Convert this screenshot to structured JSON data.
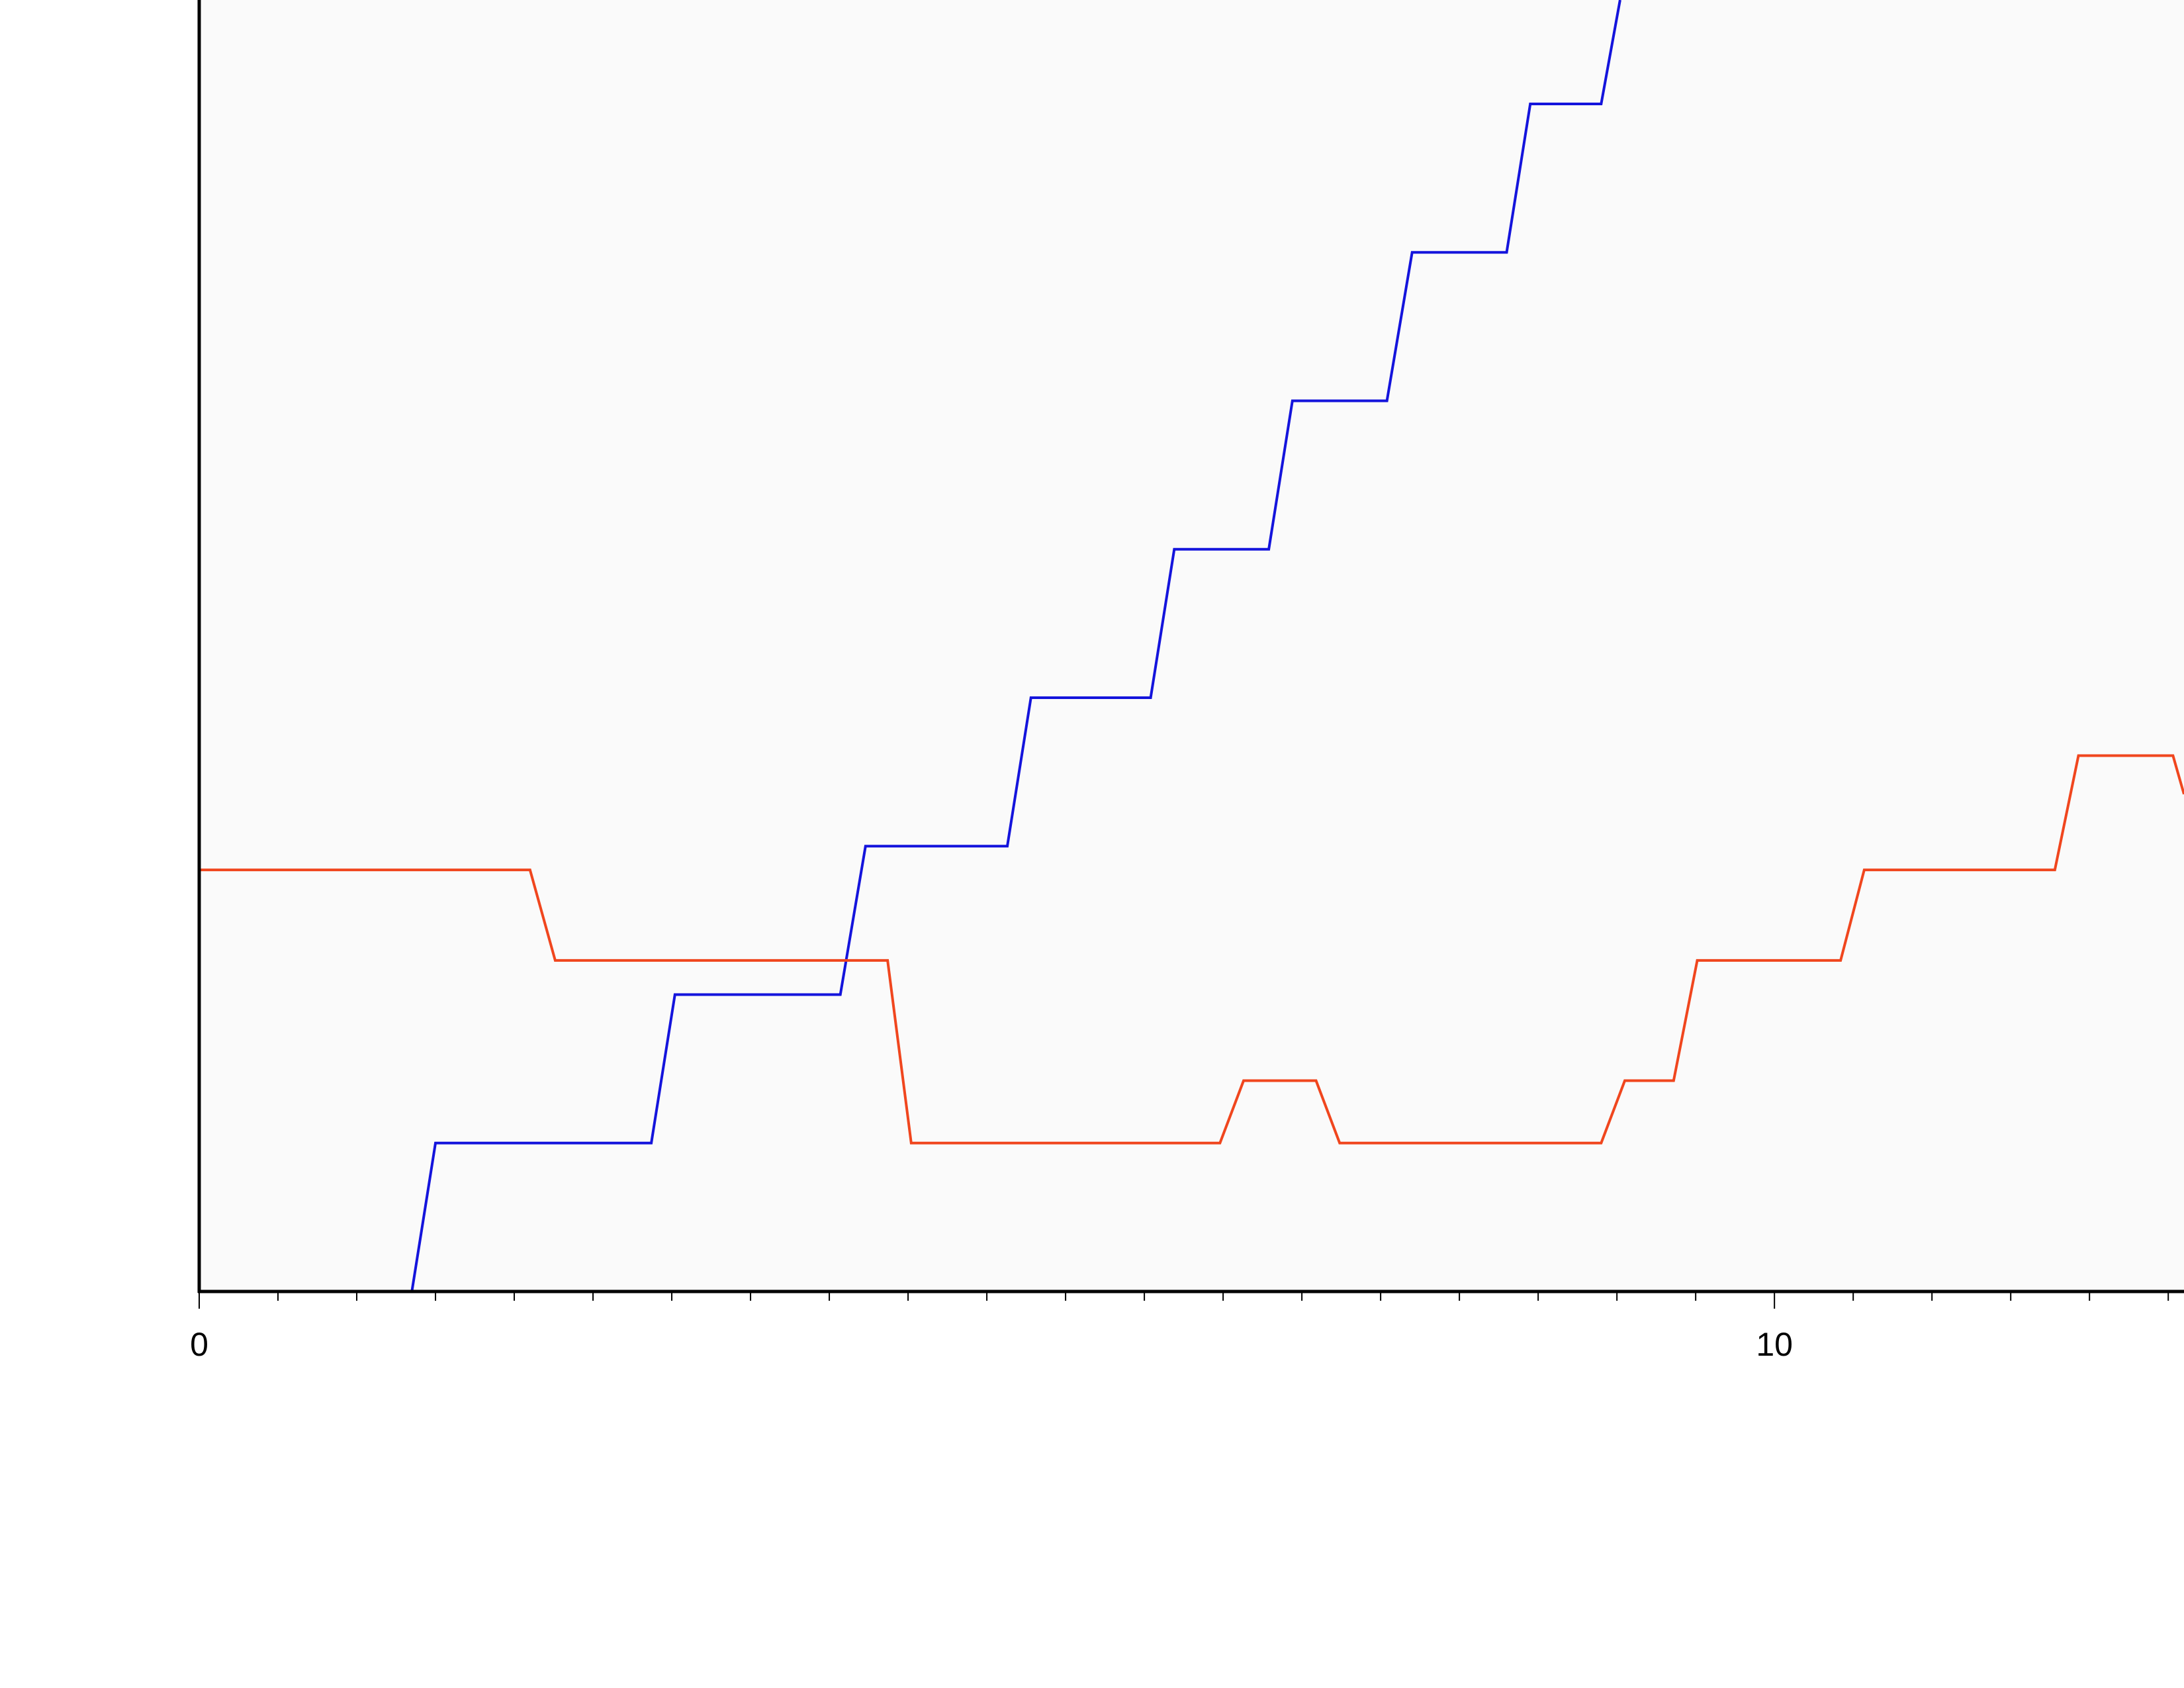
{
  "chart_data": {
    "type": "line",
    "xlim": [
      0,
      12.6
    ],
    "ylim": [
      0,
      8.7
    ],
    "xticks": [
      0,
      10
    ],
    "xminorticks": [
      0.5,
      1,
      1.5,
      2,
      2.5,
      3,
      3.5,
      4,
      4.5,
      5,
      5.5,
      6,
      6.5,
      7,
      7.5,
      8,
      8.5,
      9,
      9.5,
      10.5,
      11,
      11.5,
      12,
      12.5
    ],
    "series": [
      {
        "color": "#1414dc",
        "x": [
          0,
          1.35,
          1.5,
          2.87,
          3.02,
          4.07,
          4.23,
          5.13,
          5.28,
          6.04,
          6.19,
          6.79,
          6.94,
          7.54,
          7.7,
          8.3,
          8.45,
          8.9,
          9.02
        ],
        "values": [
          0,
          0,
          1,
          1,
          2,
          2,
          3,
          3,
          4,
          4,
          5,
          5,
          6,
          6,
          7,
          7,
          8,
          8,
          8.7
        ]
      },
      {
        "color": "#f0461e",
        "x": [
          0,
          2.1,
          2.26,
          4.37,
          4.52,
          6.48,
          6.63,
          7.09,
          7.24,
          8.9,
          9.05,
          9.36,
          9.51,
          10.42,
          10.57,
          11.78,
          11.93,
          12.53,
          12.6
        ],
        "values": [
          2.84,
          2.84,
          2.23,
          2.23,
          1,
          1,
          1.42,
          1.42,
          1,
          1,
          1.42,
          1.42,
          2.23,
          2.23,
          2.84,
          2.84,
          3.61,
          3.61,
          3.35
        ]
      }
    ]
  }
}
